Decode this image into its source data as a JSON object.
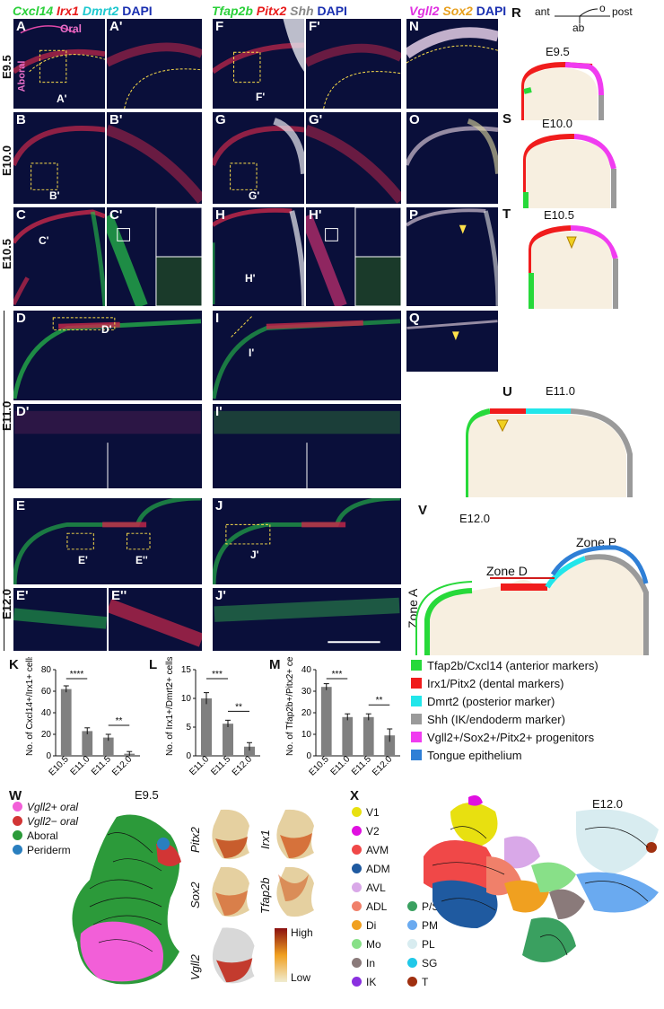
{
  "headers": {
    "col1": [
      "Cxcl14",
      "Irx1",
      "Dmrt2",
      "DAPI"
    ],
    "col2": [
      "Tfap2b",
      "Pitx2",
      "Shh",
      "DAPI"
    ],
    "col3": [
      "Vgll2",
      "Sox2",
      "DAPI"
    ]
  },
  "stages": [
    "E9.5",
    "E10.0",
    "E10.5",
    "E11.0",
    "E12.0"
  ],
  "panels": {
    "A": "A",
    "A1": "A'",
    "B": "B",
    "B1": "B'",
    "C": "C",
    "C1": "C'",
    "D": "D",
    "D1": "D'",
    "E": "E",
    "E1": "E'",
    "E2": "E''",
    "F": "F",
    "F1": "F'",
    "G": "G",
    "G1": "G'",
    "H": "H",
    "H1": "H'",
    "I": "I",
    "I1": "I'",
    "J": "J",
    "J1": "J'",
    "N": "N",
    "O": "O",
    "P": "P",
    "Q": "Q",
    "R": "R",
    "S": "S",
    "T": "T",
    "U": "U",
    "V": "V",
    "K": "K",
    "L": "L",
    "M": "M",
    "W": "W",
    "X": "X"
  },
  "sublabels": {
    "oral": "Oral",
    "aboral": "Aboral",
    "a": "A'",
    "b": "B'",
    "c": "C'",
    "d": "D'",
    "e1": "E'",
    "e2": "E''",
    "f": "F'",
    "g": "G'",
    "h": "H'",
    "i": "I'",
    "j": "J'"
  },
  "axis": {
    "ant": "ant",
    "post": "post",
    "ab": "ab",
    "o": "o"
  },
  "schematics": {
    "R": "E9.5",
    "S": "E10.0",
    "T": "E10.5",
    "U": "E11.0",
    "V": "E12.0"
  },
  "zones": {
    "A": "Zone A",
    "D": "Zone D",
    "P": "Zone P"
  },
  "legend": [
    {
      "color": "#27d93a",
      "label": "Tfap2b/Cxcl14 (anterior markers)"
    },
    {
      "color": "#f01c1c",
      "label": "Irx1/Pitx2 (dental markers)"
    },
    {
      "color": "#22e6ea",
      "label": "Dmrt2 (posterior marker)"
    },
    {
      "color": "#9a9a9a",
      "label": "Shh (IK/endoderm marker)"
    },
    {
      "color": "#f03cf0",
      "label": "Vgll2+/Sox2+/Pitx2+ progenitors"
    },
    {
      "color": "#2f7fd6",
      "label": "Tongue epithelium"
    }
  ],
  "chart_data": [
    {
      "type": "bar",
      "panel": "K",
      "categories": [
        "E10.5",
        "E11.0",
        "E11.5",
        "E12.0"
      ],
      "values": [
        62,
        23,
        17,
        2
      ],
      "errors": [
        3,
        3,
        3,
        2
      ],
      "ylim": [
        0,
        80
      ],
      "yticks": [
        0,
        20,
        40,
        60,
        80
      ],
      "ylabel": "No. of Cxcl14+/Irx1+ cells",
      "significance": [
        "****",
        "**"
      ]
    },
    {
      "type": "bar",
      "panel": "L",
      "categories": [
        "E11.0",
        "E11.5",
        "E12.0"
      ],
      "values": [
        10,
        5.6,
        1.6
      ],
      "errors": [
        1,
        0.6,
        0.7
      ],
      "ylim": [
        0,
        15
      ],
      "yticks": [
        0,
        5,
        10,
        15
      ],
      "ylabel": "No. of Irx1+/Dmrt2+ cells",
      "significance": [
        "***",
        "**"
      ]
    },
    {
      "type": "bar",
      "panel": "M",
      "categories": [
        "E10.5",
        "E11.0",
        "E11.5",
        "E12.0"
      ],
      "values": [
        32,
        18,
        18,
        9.5
      ],
      "errors": [
        1.5,
        1.5,
        1.5,
        3
      ],
      "ylim": [
        0,
        40
      ],
      "yticks": [
        0,
        10,
        20,
        30,
        40
      ],
      "ylabel": "No. of Tfap2b+/Pitx2+ cells",
      "significance": [
        "***",
        "**"
      ]
    }
  ],
  "umapW": {
    "title": "E9.5",
    "legend": [
      {
        "color": "#f25fd8",
        "label": "Vgll2+ oral"
      },
      {
        "color": "#d23535",
        "label": "Vgll2− oral"
      },
      {
        "color": "#2c9a3a",
        "label": "Aboral"
      },
      {
        "color": "#2a7fbf",
        "label": "Periderm"
      }
    ],
    "genes": [
      "Pitx2",
      "Irx1",
      "Sox2",
      "Tfap2b",
      "Vgll2"
    ],
    "scale": {
      "high": "High",
      "low": "Low"
    }
  },
  "umapX": {
    "title": "E12.0",
    "legend": [
      {
        "color": "#e8e010",
        "label": "V1"
      },
      {
        "color": "#e010e0",
        "label": "V2"
      },
      {
        "color": "#f04848",
        "label": "AVM"
      },
      {
        "color": "#1f5aa0",
        "label": "ADM"
      },
      {
        "color": "#d9a8e8",
        "label": "AVL"
      },
      {
        "color": "#f0806a",
        "label": "ADL"
      },
      {
        "color": "#f0a020",
        "label": "Di"
      },
      {
        "color": "#88e088",
        "label": "Mo"
      },
      {
        "color": "#8a7a7a",
        "label": "In"
      },
      {
        "color": "#8a30e0",
        "label": "IK"
      },
      {
        "color": "#3aa060",
        "label": "P/S"
      },
      {
        "color": "#6aaaf0",
        "label": "PM"
      },
      {
        "color": "#d8ecf0",
        "label": "PL"
      },
      {
        "color": "#20c8e8",
        "label": "SG"
      },
      {
        "color": "#a03010",
        "label": "T"
      }
    ]
  }
}
